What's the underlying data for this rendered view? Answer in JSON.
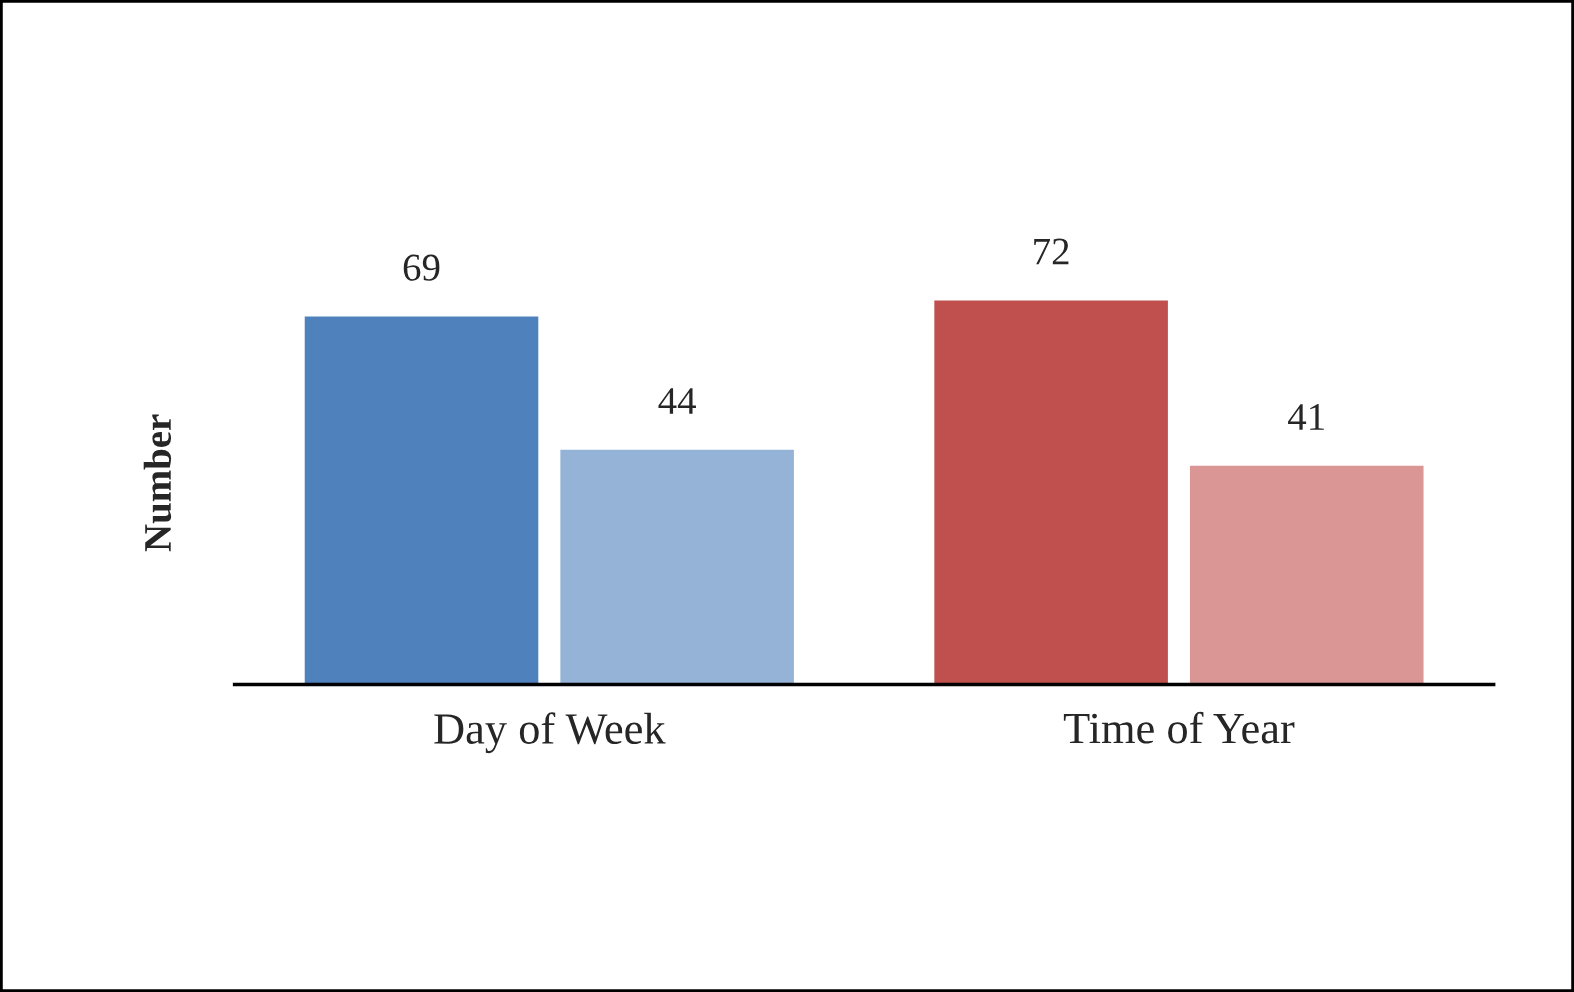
{
  "chart_data": {
    "type": "bar",
    "ylabel": "Number",
    "categories": [
      "Day of Week",
      "Time of Year"
    ],
    "series": [
      {
        "colors": [
          "#4f81bd",
          "#c0504d"
        ],
        "values": [
          69,
          72
        ]
      },
      {
        "colors": [
          "#95b3d7",
          "#d99694"
        ],
        "values": [
          44,
          41
        ]
      }
    ],
    "tick_labels": "x",
    "data_labels": true,
    "grid": false,
    "legend": false
  }
}
